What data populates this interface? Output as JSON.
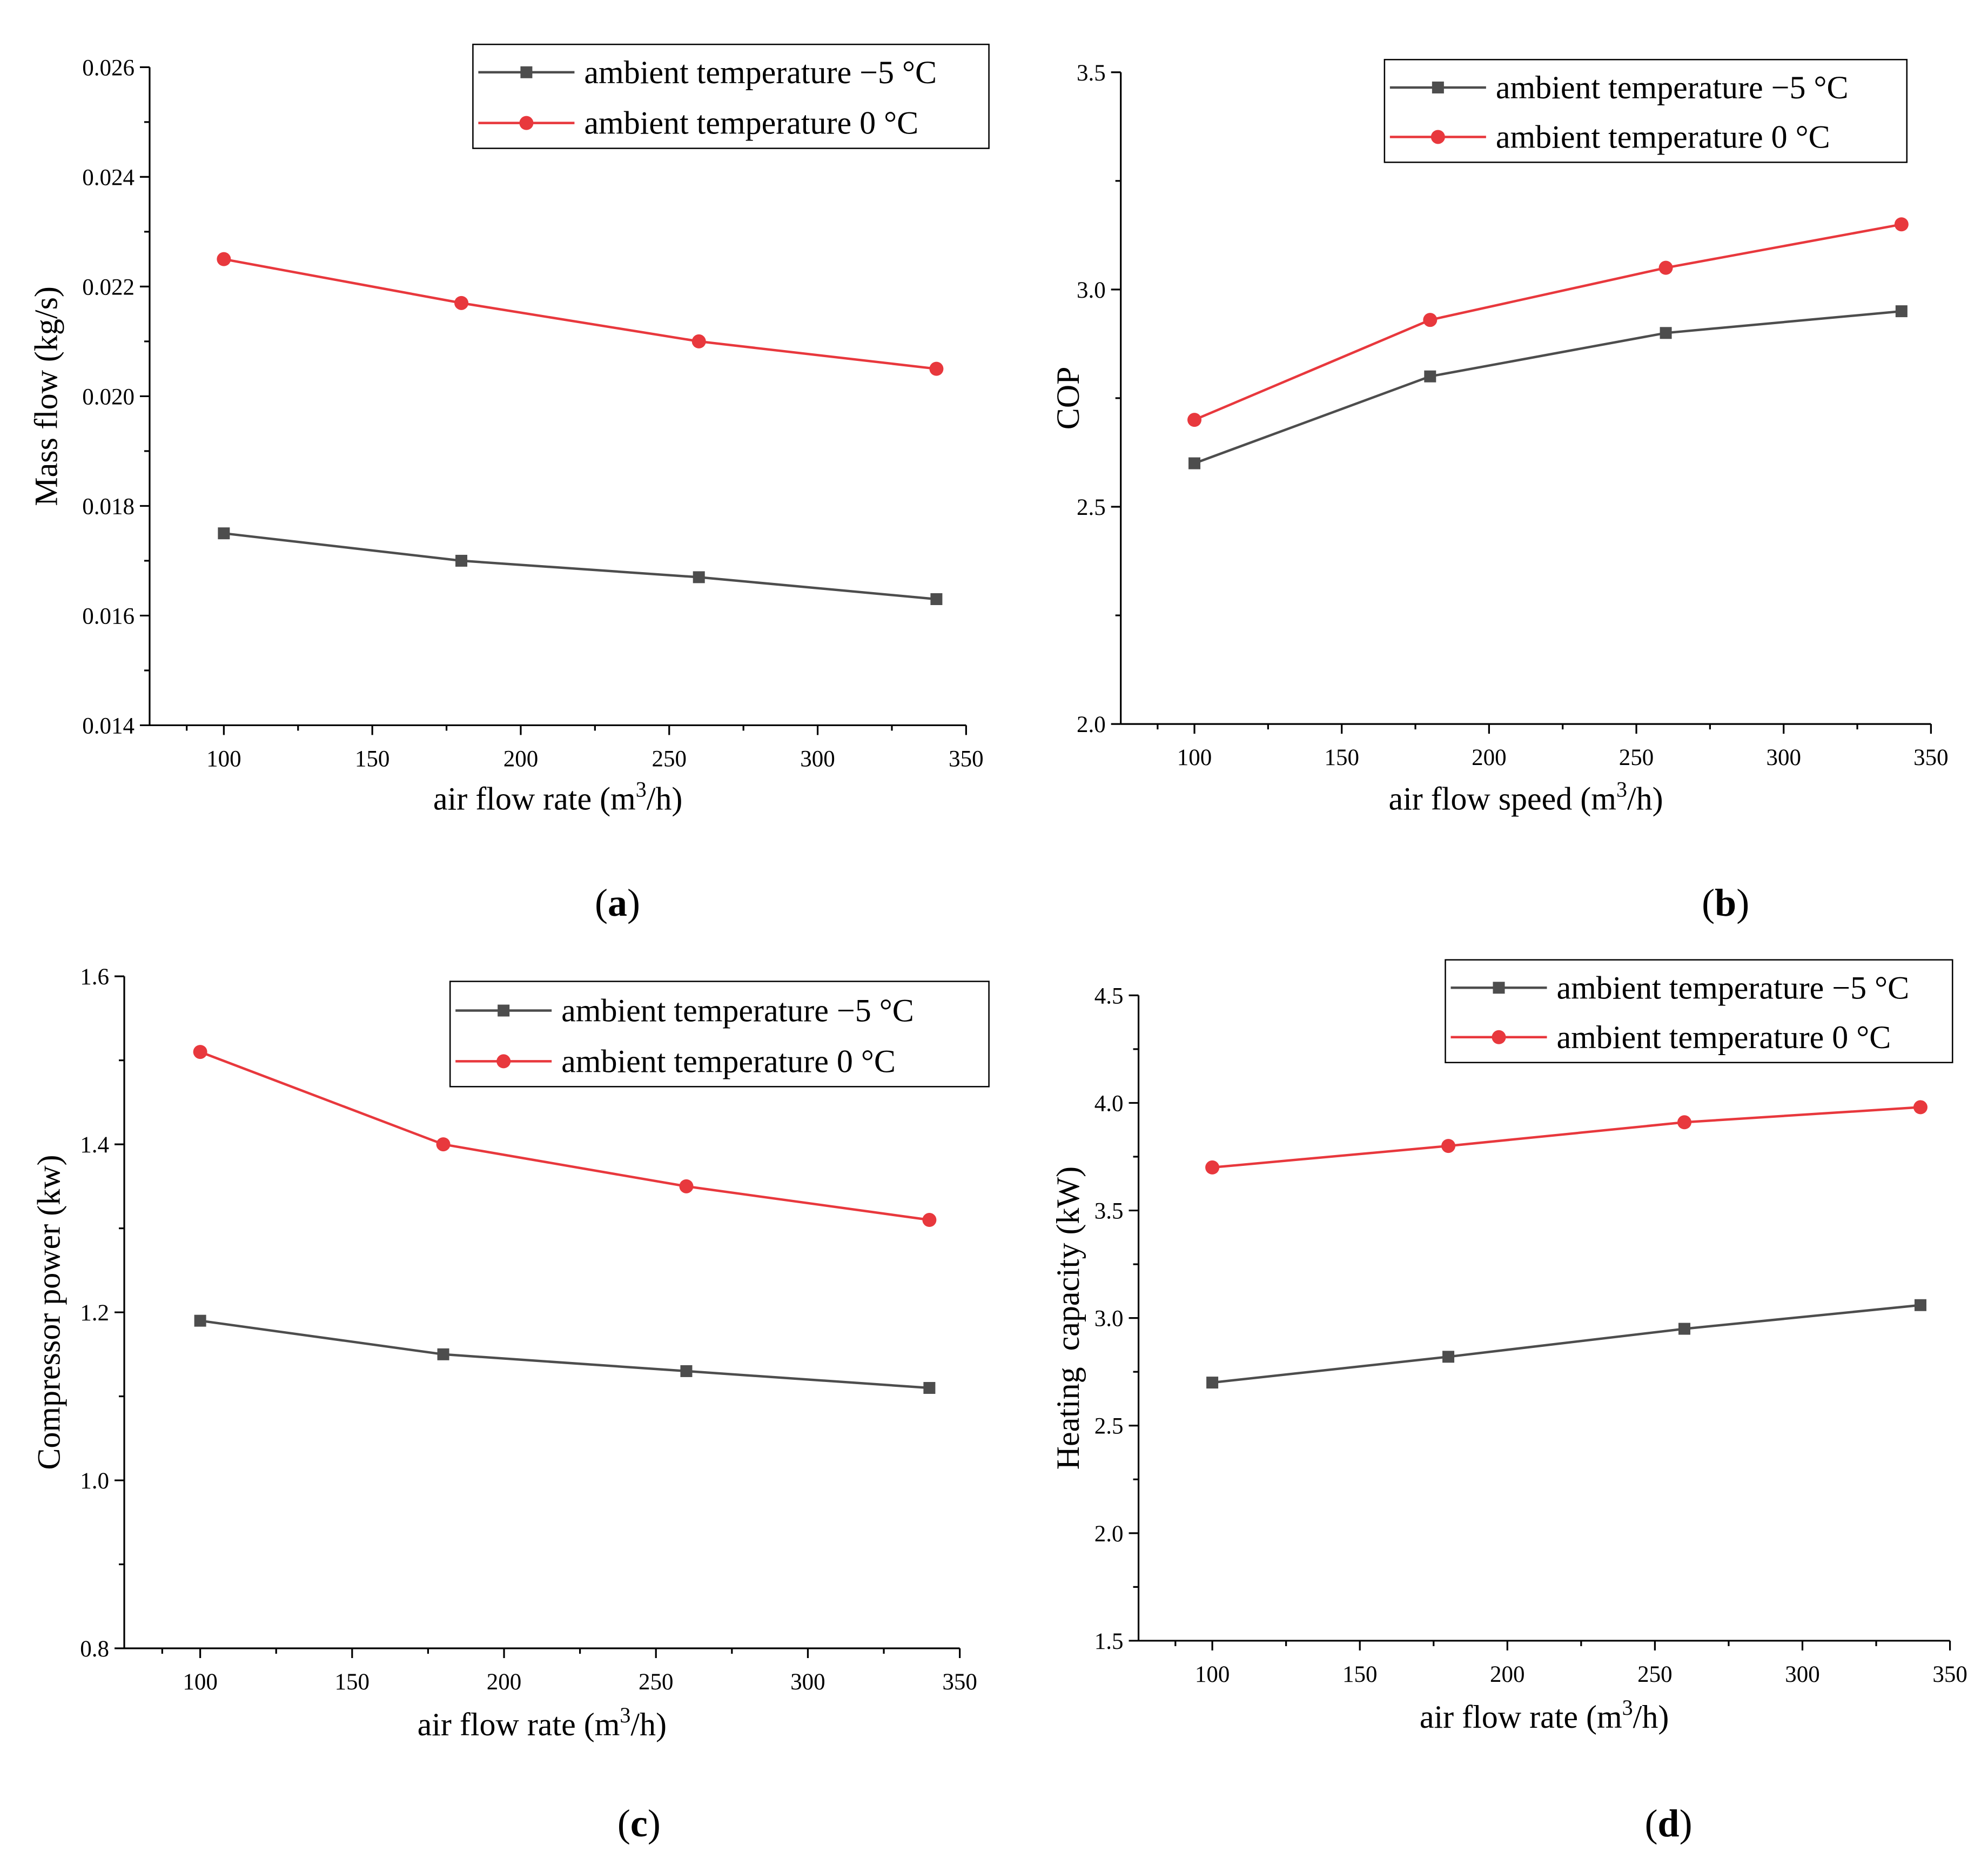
{
  "figure": {
    "colors": {
      "series_minus5": "#4d4d4d",
      "series_0": "#e8383d",
      "axis": "#000000"
    }
  },
  "chart_data": [
    {
      "id": "a",
      "type": "line",
      "panel_label": "a",
      "xlabel_main": "air flow rate (m",
      "xlabel_sup": "3",
      "xlabel_end": "/h)",
      "ylabel": "Mass flow (kg/s)",
      "xlim": [
        75,
        350
      ],
      "ylim": [
        0.014,
        0.026
      ],
      "xticks": [
        100,
        150,
        200,
        250,
        300,
        350
      ],
      "xtick_labels": [
        "100",
        "150",
        "200",
        "250",
        "300",
        "350"
      ],
      "yticks": [
        0.014,
        0.016,
        0.018,
        0.02,
        0.022,
        0.024,
        0.026
      ],
      "ytick_labels": [
        "0.014",
        "0.016",
        "0.018",
        "0.020",
        "0.022",
        "0.024",
        "0.026"
      ],
      "legend_position": "top-right",
      "x": [
        100,
        180,
        260,
        340
      ],
      "series": [
        {
          "name": "ambient temperature −5 °C",
          "marker": "square",
          "color": "#4d4d4d",
          "values": [
            0.0175,
            0.017,
            0.0167,
            0.0163
          ]
        },
        {
          "name": "ambient temperature 0 °C",
          "marker": "circle",
          "color": "#e8383d",
          "values": [
            0.0225,
            0.0217,
            0.021,
            0.0205
          ]
        }
      ]
    },
    {
      "id": "b",
      "type": "line",
      "panel_label": "b",
      "xlabel_main": "air flow speed (m",
      "xlabel_sup": "3",
      "xlabel_end": "/h)",
      "ylabel": "COP",
      "xlim": [
        75,
        350
      ],
      "ylim": [
        2.0,
        3.5
      ],
      "xticks": [
        100,
        150,
        200,
        250,
        300,
        350
      ],
      "xtick_labels": [
        "100",
        "150",
        "200",
        "250",
        "300",
        "350"
      ],
      "yticks": [
        2.0,
        2.5,
        3.0,
        3.5
      ],
      "ytick_labels": [
        "2.0",
        "2.5",
        "3.0",
        "3.5"
      ],
      "legend_position": "top-right",
      "x": [
        100,
        180,
        260,
        340
      ],
      "series": [
        {
          "name": "ambient temperature −5 °C",
          "marker": "square",
          "color": "#4d4d4d",
          "values": [
            2.6,
            2.8,
            2.9,
            2.95
          ]
        },
        {
          "name": "ambient temperature 0 °C",
          "marker": "circle",
          "color": "#e8383d",
          "values": [
            2.7,
            2.93,
            3.05,
            3.15
          ]
        }
      ]
    },
    {
      "id": "c",
      "type": "line",
      "panel_label": "c",
      "xlabel_main": "air flow rate (m",
      "xlabel_sup": "3",
      "xlabel_end": "/h)",
      "ylabel": "Compressor power (kw)",
      "xlim": [
        75,
        350
      ],
      "ylim": [
        0.8,
        1.6
      ],
      "xticks": [
        100,
        150,
        200,
        250,
        300,
        350
      ],
      "xtick_labels": [
        "100",
        "150",
        "200",
        "250",
        "300",
        "350"
      ],
      "yticks": [
        0.8,
        1.0,
        1.2,
        1.4,
        1.6
      ],
      "ytick_labels": [
        "0.8",
        "1.0",
        "1.2",
        "1.4",
        "1.6"
      ],
      "legend_position": "top-right",
      "x": [
        100,
        180,
        260,
        340
      ],
      "series": [
        {
          "name": "ambient temperature −5 °C",
          "marker": "square",
          "color": "#4d4d4d",
          "values": [
            1.19,
            1.15,
            1.13,
            1.11
          ]
        },
        {
          "name": "ambient temperature 0 °C",
          "marker": "circle",
          "color": "#e8383d",
          "values": [
            1.51,
            1.4,
            1.35,
            1.31
          ]
        }
      ]
    },
    {
      "id": "d",
      "type": "line",
      "panel_label": "d",
      "xlabel_main": "air flow rate (m",
      "xlabel_sup": "3",
      "xlabel_end": "/h)",
      "ylabel": "Heating  capacity (kW)",
      "xlim": [
        75,
        350
      ],
      "ylim": [
        1.5,
        4.5
      ],
      "xticks": [
        100,
        150,
        200,
        250,
        300,
        350
      ],
      "xtick_labels": [
        "100",
        "150",
        "200",
        "250",
        "300",
        "350"
      ],
      "yticks": [
        1.5,
        2.0,
        2.5,
        3.0,
        3.5,
        4.0,
        4.5
      ],
      "ytick_labels": [
        "1.5",
        "2.0",
        "2.5",
        "3.0",
        "3.5",
        "4.0",
        "4.5"
      ],
      "legend_position": "top-right",
      "x": [
        100,
        180,
        260,
        340
      ],
      "series": [
        {
          "name": "ambient temperature −5 °C",
          "marker": "square",
          "color": "#4d4d4d",
          "values": [
            2.7,
            2.82,
            2.95,
            3.06
          ]
        },
        {
          "name": "ambient temperature 0 °C",
          "marker": "circle",
          "color": "#e8383d",
          "values": [
            3.7,
            3.8,
            3.91,
            3.98
          ]
        }
      ]
    }
  ]
}
